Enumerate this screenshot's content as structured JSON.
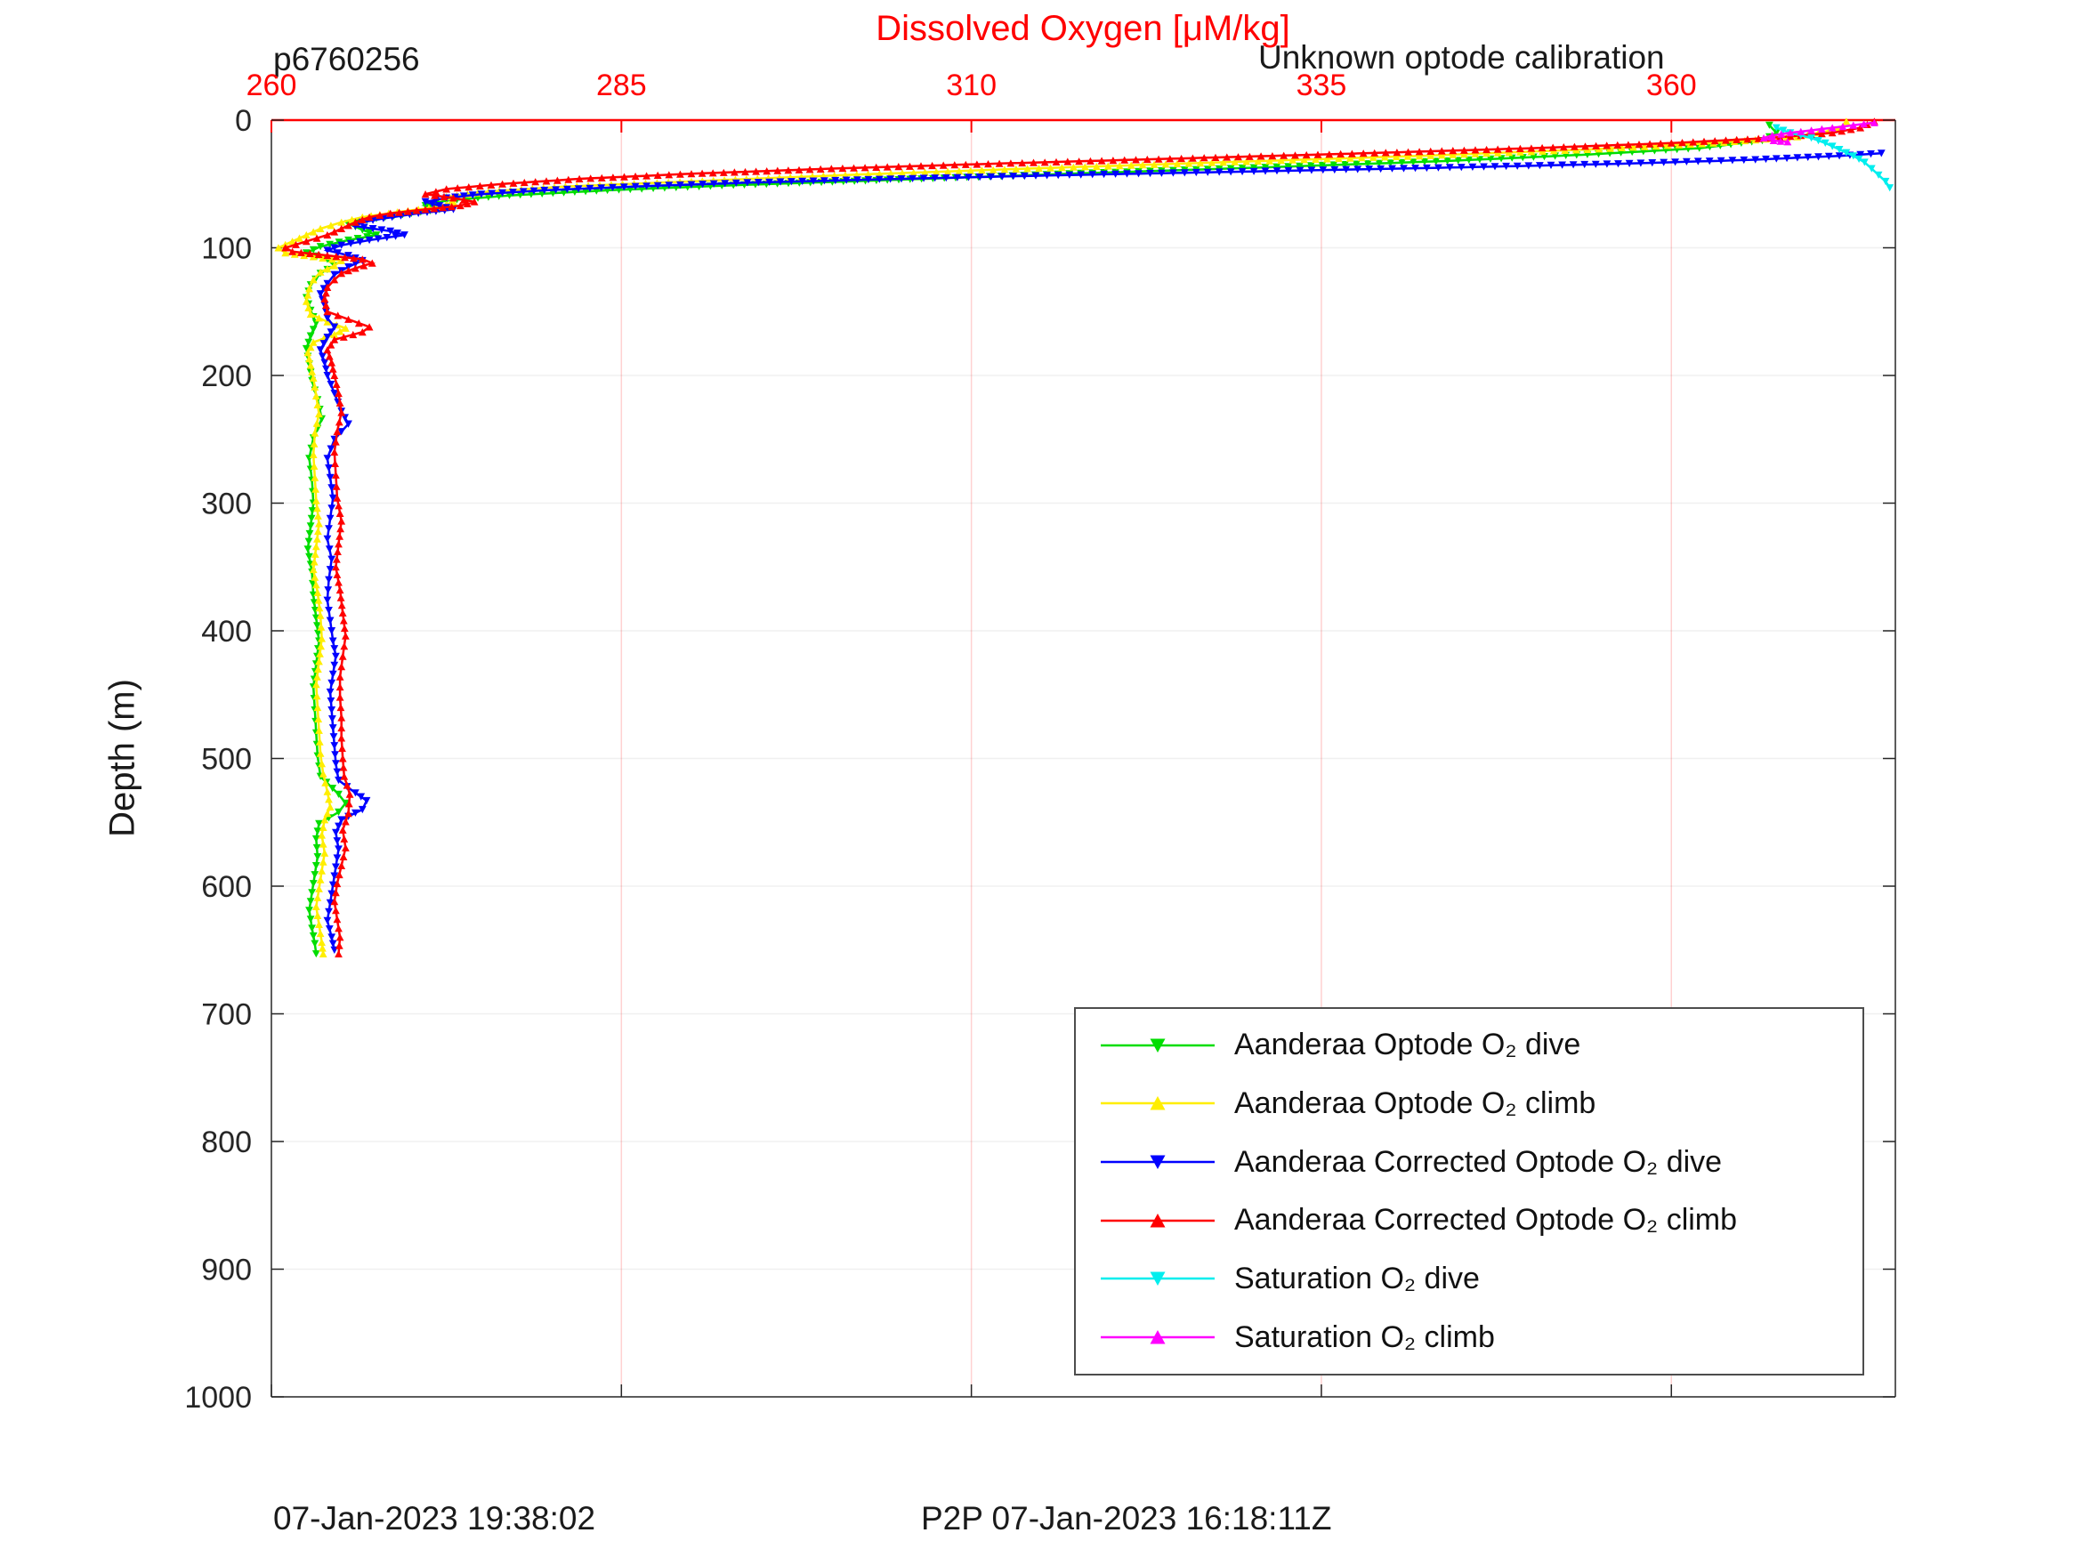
{
  "header": {
    "station_id": "p6760256",
    "calibration_note": "Unknown optode calibration"
  },
  "chart_data": {
    "type": "line",
    "title": "Dissolved Oxygen [μM/kg]",
    "ylabel": "Depth (m)",
    "xlim": [
      260,
      376
    ],
    "ylim": [
      0,
      1000
    ],
    "x_ticks": [
      260,
      285,
      310,
      335,
      360
    ],
    "y_ticks": [
      0,
      100,
      200,
      300,
      400,
      500,
      600,
      700,
      800,
      900,
      1000
    ],
    "axis_colors": {
      "x": "#ff0000",
      "y": "#262626"
    },
    "grid": {
      "x": true,
      "y": true
    },
    "legend_position": "lower right",
    "x_orientation": "top",
    "series": [
      {
        "name": "Aanderaa Optode O₂ dive",
        "color": "#00dd00",
        "marker": "down",
        "points": [
          [
            367,
            4
          ],
          [
            367.5,
            10
          ],
          [
            366.5,
            16
          ],
          [
            362,
            22
          ],
          [
            354,
            27
          ],
          [
            344,
            32
          ],
          [
            331,
            37
          ],
          [
            317,
            42
          ],
          [
            304,
            47
          ],
          [
            293,
            51
          ],
          [
            284,
            55
          ],
          [
            277,
            59
          ],
          [
            272.5,
            63
          ],
          [
            271,
            67
          ],
          [
            272,
            70
          ],
          [
            270,
            73
          ],
          [
            267.5,
            77
          ],
          [
            265.5,
            81
          ],
          [
            266.5,
            86
          ],
          [
            267.5,
            90
          ],
          [
            265.5,
            94
          ],
          [
            263.5,
            99
          ],
          [
            262.5,
            104
          ],
          [
            264,
            109
          ],
          [
            264.5,
            114
          ],
          [
            263.5,
            120
          ],
          [
            262.8,
            129
          ],
          [
            262.5,
            139
          ],
          [
            262.8,
            149
          ],
          [
            263.2,
            159
          ],
          [
            262.8,
            169
          ],
          [
            262.5,
            179
          ],
          [
            262.7,
            191
          ],
          [
            262.9,
            204
          ],
          [
            263.3,
            219
          ],
          [
            263.6,
            234
          ],
          [
            263,
            249
          ],
          [
            262.7,
            265
          ],
          [
            262.9,
            282
          ],
          [
            263,
            300
          ],
          [
            262.8,
            318
          ],
          [
            262.6,
            336
          ],
          [
            262.9,
            354
          ],
          [
            263,
            372
          ],
          [
            263.2,
            390
          ],
          [
            263.4,
            408
          ],
          [
            263.2,
            426
          ],
          [
            263,
            444
          ],
          [
            263.1,
            462
          ],
          [
            263.2,
            480
          ],
          [
            263.3,
            498
          ],
          [
            263.5,
            514
          ],
          [
            264.8,
            528
          ],
          [
            265.3,
            535
          ],
          [
            264.8,
            542
          ],
          [
            263.4,
            551
          ],
          [
            263.2,
            563
          ],
          [
            263.3,
            577
          ],
          [
            263.1,
            591
          ],
          [
            262.9,
            605
          ],
          [
            262.7,
            619
          ],
          [
            262.9,
            633
          ],
          [
            263.1,
            645
          ],
          [
            263.2,
            653
          ]
        ]
      },
      {
        "name": "Aanderaa Optode O₂ climb",
        "color": "#ffee00",
        "marker": "up",
        "points": [
          [
            372.5,
            1
          ],
          [
            372,
            7
          ],
          [
            369,
            13
          ],
          [
            363,
            18
          ],
          [
            354,
            23
          ],
          [
            342,
            28
          ],
          [
            328,
            33
          ],
          [
            314,
            38
          ],
          [
            301,
            43
          ],
          [
            290,
            48
          ],
          [
            281,
            52
          ],
          [
            275.5,
            56
          ],
          [
            272.5,
            60
          ],
          [
            273,
            64
          ],
          [
            272,
            68
          ],
          [
            269,
            72
          ],
          [
            266.5,
            76
          ],
          [
            265,
            80
          ],
          [
            263.5,
            85
          ],
          [
            262.5,
            90
          ],
          [
            261.5,
            95
          ],
          [
            260.5,
            100
          ],
          [
            261,
            104
          ],
          [
            263,
            107
          ],
          [
            265,
            110
          ],
          [
            264.5,
            114
          ],
          [
            263.5,
            119
          ],
          [
            263,
            125
          ],
          [
            262.7,
            132
          ],
          [
            262.5,
            142
          ],
          [
            262.8,
            152
          ],
          [
            264,
            158
          ],
          [
            265.3,
            163
          ],
          [
            264.5,
            168
          ],
          [
            263,
            174
          ],
          [
            262.6,
            182
          ],
          [
            262.8,
            192
          ],
          [
            263,
            202
          ],
          [
            263.2,
            216
          ],
          [
            263.4,
            230
          ],
          [
            263.1,
            245
          ],
          [
            263,
            262
          ],
          [
            263.1,
            280
          ],
          [
            263.2,
            298
          ],
          [
            263.4,
            316
          ],
          [
            263.2,
            334
          ],
          [
            263,
            352
          ],
          [
            263.3,
            370
          ],
          [
            263.5,
            388
          ],
          [
            263.6,
            406
          ],
          [
            263.4,
            424
          ],
          [
            263.2,
            442
          ],
          [
            263.3,
            460
          ],
          [
            263.4,
            478
          ],
          [
            263.5,
            496
          ],
          [
            263.7,
            512
          ],
          [
            264,
            526
          ],
          [
            264.2,
            538
          ],
          [
            263.8,
            548
          ],
          [
            263.6,
            560
          ],
          [
            263.8,
            574
          ],
          [
            263.6,
            588
          ],
          [
            263.4,
            602
          ],
          [
            263.2,
            616
          ],
          [
            263.4,
            630
          ],
          [
            263.6,
            644
          ],
          [
            263.7,
            653
          ]
        ]
      },
      {
        "name": "Aanderaa Corrected Optode O₂ dive",
        "color": "#0000ff",
        "marker": "down",
        "points": [
          [
            375,
            26
          ],
          [
            372,
            28
          ],
          [
            366,
            31
          ],
          [
            357,
            34
          ],
          [
            345,
            37
          ],
          [
            331,
            40
          ],
          [
            317,
            43
          ],
          [
            305,
            46
          ],
          [
            294,
            49
          ],
          [
            286,
            52
          ],
          [
            279.5,
            55
          ],
          [
            275,
            58
          ],
          [
            272.5,
            61
          ],
          [
            271,
            64
          ],
          [
            272,
            67
          ],
          [
            273,
            70
          ],
          [
            270.5,
            73
          ],
          [
            268,
            77
          ],
          [
            266.5,
            80
          ],
          [
            266,
            83
          ],
          [
            268.5,
            87
          ],
          [
            269.5,
            90
          ],
          [
            267,
            94
          ],
          [
            265,
            98
          ],
          [
            264,
            102
          ],
          [
            265.5,
            106
          ],
          [
            266.5,
            110
          ],
          [
            265.5,
            115
          ],
          [
            264.5,
            121
          ],
          [
            264,
            128
          ],
          [
            263.5,
            136
          ],
          [
            263.8,
            145
          ],
          [
            264,
            155
          ],
          [
            264.5,
            162
          ],
          [
            264,
            170
          ],
          [
            263.5,
            180
          ],
          [
            263.8,
            190
          ],
          [
            264,
            200
          ],
          [
            264.5,
            214
          ],
          [
            265,
            228
          ],
          [
            265.5,
            238
          ],
          [
            264.5,
            250
          ],
          [
            264,
            265
          ],
          [
            264.2,
            280
          ],
          [
            264.4,
            296
          ],
          [
            264.2,
            312
          ],
          [
            264,
            328
          ],
          [
            264.3,
            344
          ],
          [
            264.1,
            360
          ],
          [
            264,
            376
          ],
          [
            264.2,
            392
          ],
          [
            264.4,
            408
          ],
          [
            264.6,
            420
          ],
          [
            264.4,
            434
          ],
          [
            264.2,
            448
          ],
          [
            264.3,
            462
          ],
          [
            264.4,
            476
          ],
          [
            264.5,
            490
          ],
          [
            264.6,
            504
          ],
          [
            264.8,
            517
          ],
          [
            266,
            527
          ],
          [
            266.8,
            533
          ],
          [
            266.5,
            540
          ],
          [
            265,
            548
          ],
          [
            264.6,
            558
          ],
          [
            264.8,
            571
          ],
          [
            264.6,
            585
          ],
          [
            264.4,
            599
          ],
          [
            264.2,
            613
          ],
          [
            264,
            627
          ],
          [
            264.3,
            640
          ],
          [
            264.5,
            650
          ]
        ]
      },
      {
        "name": "Aanderaa Corrected Optode O₂ climb",
        "color": "#ff0000",
        "marker": "up",
        "points": [
          [
            374.5,
            1
          ],
          [
            373.5,
            6
          ],
          [
            371.5,
            10
          ],
          [
            367,
            14
          ],
          [
            360,
            18
          ],
          [
            350,
            22
          ],
          [
            338,
            26
          ],
          [
            325,
            30
          ],
          [
            312,
            34
          ],
          [
            300,
            38
          ],
          [
            290,
            42
          ],
          [
            282,
            46
          ],
          [
            276.5,
            50
          ],
          [
            272.5,
            54
          ],
          [
            271,
            58
          ],
          [
            273,
            61
          ],
          [
            274.5,
            64
          ],
          [
            273.5,
            67
          ],
          [
            271,
            70
          ],
          [
            268.5,
            73
          ],
          [
            267,
            76
          ],
          [
            266,
            80
          ],
          [
            265,
            85
          ],
          [
            264,
            90
          ],
          [
            262.5,
            95
          ],
          [
            261,
            100
          ],
          [
            261.5,
            103
          ],
          [
            264,
            106
          ],
          [
            266.5,
            109
          ],
          [
            267.2,
            112
          ],
          [
            266,
            116
          ],
          [
            265,
            120
          ],
          [
            264.5,
            125
          ],
          [
            264,
            131
          ],
          [
            263.8,
            140
          ],
          [
            264,
            150
          ],
          [
            265.5,
            156
          ],
          [
            267,
            162
          ],
          [
            266.5,
            166
          ],
          [
            264.5,
            172
          ],
          [
            264,
            180
          ],
          [
            264.3,
            190
          ],
          [
            264.5,
            200
          ],
          [
            264.8,
            214
          ],
          [
            265,
            229
          ],
          [
            264.7,
            244
          ],
          [
            264.5,
            260
          ],
          [
            264.6,
            278
          ],
          [
            264.7,
            296
          ],
          [
            265,
            314
          ],
          [
            264.8,
            332
          ],
          [
            264.6,
            350
          ],
          [
            264.9,
            368
          ],
          [
            265.1,
            386
          ],
          [
            265.3,
            404
          ],
          [
            265.1,
            420
          ],
          [
            264.9,
            436
          ],
          [
            264.9,
            452
          ],
          [
            265,
            468
          ],
          [
            265,
            484
          ],
          [
            265.1,
            500
          ],
          [
            265.2,
            514
          ],
          [
            265.6,
            528
          ],
          [
            265.5,
            543
          ],
          [
            265.1,
            556
          ],
          [
            265.3,
            570
          ],
          [
            265,
            584
          ],
          [
            264.7,
            598
          ],
          [
            264.5,
            612
          ],
          [
            264.7,
            626
          ],
          [
            264.9,
            640
          ],
          [
            264.8,
            653
          ]
        ]
      },
      {
        "name": "Saturation O₂ dive",
        "color": "#00eeee",
        "marker": "down",
        "points": [
          [
            367.5,
            6
          ],
          [
            368.5,
            10
          ],
          [
            370,
            14
          ],
          [
            371,
            18
          ],
          [
            372,
            23
          ],
          [
            373,
            28
          ],
          [
            373.8,
            33
          ],
          [
            374.3,
            38
          ],
          [
            374.8,
            43
          ],
          [
            375.3,
            48
          ],
          [
            375.6,
            53
          ]
        ]
      },
      {
        "name": "Saturation O₂ climb",
        "color": "#ff00ff",
        "marker": "up",
        "points": [
          [
            374.5,
            2
          ],
          [
            373,
            4
          ],
          [
            371.5,
            6
          ],
          [
            370,
            8
          ],
          [
            368.5,
            10
          ],
          [
            367.2,
            12
          ],
          [
            366.6,
            14
          ],
          [
            367.3,
            16
          ],
          [
            368.3,
            17
          ]
        ]
      }
    ]
  },
  "footer": {
    "left_text": "07-Jan-2023 19:38:02",
    "center_text": "P2P 07-Jan-2023 16:18:11Z"
  }
}
